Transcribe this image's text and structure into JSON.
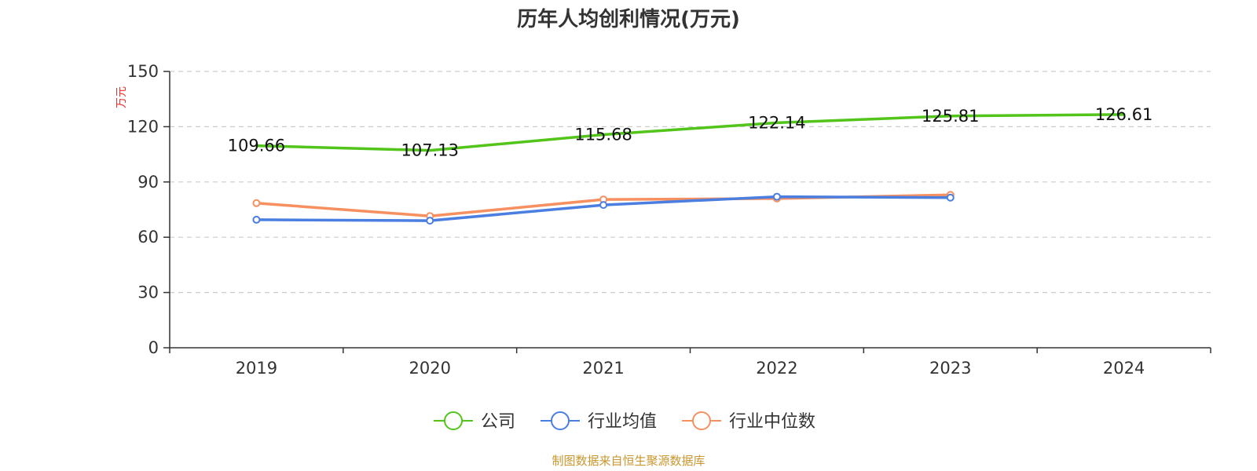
{
  "chart_data": {
    "type": "line",
    "title": "历年人均创利情况(万元)",
    "ylabel": "万元",
    "categories": [
      "2019",
      "2020",
      "2021",
      "2022",
      "2023",
      "2024"
    ],
    "ylim": [
      0,
      150
    ],
    "yticks": [
      0,
      30,
      60,
      90,
      120,
      150
    ],
    "grid": true,
    "legend_position": "bottom",
    "series": [
      {
        "name": "公司",
        "color": "#52c41a",
        "values": [
          109.66,
          107.13,
          115.68,
          122.14,
          125.81,
          126.61
        ],
        "labels": [
          "109.66",
          "107.13",
          "115.68",
          "122.14",
          "125.81",
          "126.61"
        ]
      },
      {
        "name": "行业均值",
        "color": "#4a7ee0",
        "values": [
          69.5,
          69.0,
          77.5,
          82.0,
          81.5,
          null
        ]
      },
      {
        "name": "行业中位数",
        "color": "#f79060",
        "values": [
          78.5,
          71.5,
          80.5,
          81.0,
          83.0,
          null
        ]
      }
    ],
    "source": "制图数据来自恒生聚源数据库"
  }
}
